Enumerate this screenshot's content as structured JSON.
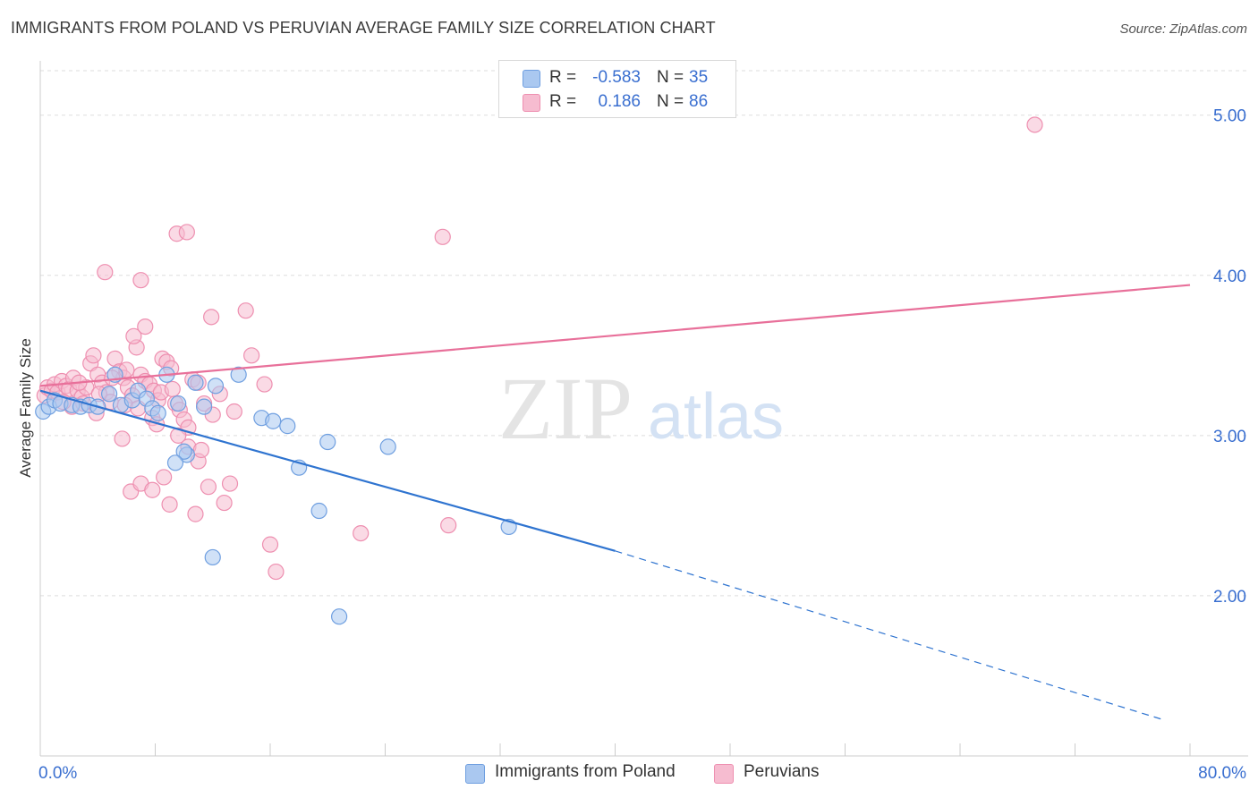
{
  "title": "IMMIGRANTS FROM POLAND VS PERUVIAN AVERAGE FAMILY SIZE CORRELATION CHART",
  "source": "Source: ZipAtlas.com",
  "watermark": {
    "zip": "ZIP",
    "atlas": "atlas"
  },
  "legend": [
    {
      "r_label": "R =",
      "r_value": "-0.583",
      "n_label": "N =",
      "n_value": "35"
    },
    {
      "r_label": "R =",
      "r_value": "0.186",
      "n_label": "N =",
      "n_value": "86"
    }
  ],
  "colors": {
    "blue_fill": "#aac8f0",
    "blue_stroke": "#6f9fe0",
    "blue_line": "#2f74d0",
    "pink_fill": "#f6bcd0",
    "pink_stroke": "#ee8fb0",
    "pink_line": "#e8709a",
    "tick_label": "#3a6fd0",
    "grid": "#dddddd"
  },
  "chart_data": {
    "type": "scatter",
    "title": "IMMIGRANTS FROM POLAND VS PERUVIAN AVERAGE FAMILY SIZE CORRELATION CHART",
    "xlabel": "",
    "ylabel": "Average Family Size",
    "xlim": [
      0,
      80
    ],
    "ylim": [
      1.0,
      5.3
    ],
    "x_tick_labels": [
      "0.0%",
      "80.0%"
    ],
    "y_ticks": [
      2.0,
      3.0,
      4.0,
      5.0
    ],
    "y_tick_labels": [
      "2.00",
      "3.00",
      "4.00",
      "5.00"
    ],
    "grid": true,
    "legend_position": "bottom",
    "series": [
      {
        "name": "Immigrants from Poland",
        "color": "#aac8f0",
        "points": [
          [
            0.2,
            3.15
          ],
          [
            0.6,
            3.18
          ],
          [
            1.0,
            3.22
          ],
          [
            1.4,
            3.2
          ],
          [
            2.2,
            3.19
          ],
          [
            2.8,
            3.18
          ],
          [
            3.4,
            3.19
          ],
          [
            4.0,
            3.18
          ],
          [
            4.8,
            3.26
          ],
          [
            5.2,
            3.38
          ],
          [
            5.6,
            3.19
          ],
          [
            6.4,
            3.22
          ],
          [
            6.8,
            3.28
          ],
          [
            7.4,
            3.23
          ],
          [
            7.8,
            3.17
          ],
          [
            8.2,
            3.14
          ],
          [
            8.8,
            3.38
          ],
          [
            9.6,
            3.2
          ],
          [
            10.2,
            2.88
          ],
          [
            10.8,
            3.33
          ],
          [
            11.4,
            3.18
          ],
          [
            12.2,
            3.31
          ],
          [
            13.8,
            3.38
          ],
          [
            15.4,
            3.11
          ],
          [
            16.2,
            3.09
          ],
          [
            17.2,
            3.06
          ],
          [
            18.0,
            2.8
          ],
          [
            19.4,
            2.53
          ],
          [
            20.0,
            2.96
          ],
          [
            24.2,
            2.93
          ],
          [
            10.0,
            2.9
          ],
          [
            9.4,
            2.83
          ],
          [
            12.0,
            2.24
          ],
          [
            20.8,
            1.87
          ],
          [
            32.6,
            2.43
          ]
        ],
        "trend": {
          "x0": 0,
          "y0": 3.28,
          "x1": 40,
          "y1": 2.28,
          "dashed_to": [
            78,
            1.23
          ]
        }
      },
      {
        "name": "Peruvians",
        "color": "#f6bcd0",
        "points": [
          [
            0.3,
            3.25
          ],
          [
            0.5,
            3.3
          ],
          [
            0.8,
            3.28
          ],
          [
            1.0,
            3.32
          ],
          [
            1.2,
            3.27
          ],
          [
            1.5,
            3.34
          ],
          [
            1.8,
            3.31
          ],
          [
            2.0,
            3.29
          ],
          [
            2.3,
            3.36
          ],
          [
            2.6,
            3.28
          ],
          [
            2.9,
            3.24
          ],
          [
            3.2,
            3.3
          ],
          [
            3.5,
            3.45
          ],
          [
            3.7,
            3.5
          ],
          [
            4.0,
            3.38
          ],
          [
            4.3,
            3.33
          ],
          [
            4.6,
            3.27
          ],
          [
            4.9,
            3.21
          ],
          [
            5.2,
            3.48
          ],
          [
            5.5,
            3.4
          ],
          [
            5.8,
            3.36
          ],
          [
            6.1,
            3.3
          ],
          [
            6.4,
            3.25
          ],
          [
            6.7,
            3.55
          ],
          [
            7.0,
            3.38
          ],
          [
            7.3,
            3.34
          ],
          [
            7.6,
            3.32
          ],
          [
            7.9,
            3.28
          ],
          [
            8.2,
            3.22
          ],
          [
            8.5,
            3.48
          ],
          [
            8.8,
            3.46
          ],
          [
            9.1,
            3.42
          ],
          [
            9.4,
            3.2
          ],
          [
            9.7,
            3.16
          ],
          [
            10.0,
            3.1
          ],
          [
            10.3,
            3.05
          ],
          [
            10.6,
            3.35
          ],
          [
            11.0,
            3.33
          ],
          [
            11.4,
            3.2
          ],
          [
            12.0,
            3.13
          ],
          [
            4.5,
            4.02
          ],
          [
            7.0,
            3.97
          ],
          [
            9.5,
            4.26
          ],
          [
            10.2,
            4.27
          ],
          [
            7.3,
            3.68
          ],
          [
            11.9,
            3.74
          ],
          [
            14.3,
            3.78
          ],
          [
            6.5,
            3.62
          ],
          [
            14.7,
            3.5
          ],
          [
            15.6,
            3.32
          ],
          [
            28.0,
            4.24
          ],
          [
            69.2,
            4.94
          ],
          [
            5.7,
            2.98
          ],
          [
            6.3,
            2.65
          ],
          [
            7.0,
            2.7
          ],
          [
            7.8,
            2.66
          ],
          [
            8.6,
            2.74
          ],
          [
            9.0,
            2.57
          ],
          [
            9.6,
            3.0
          ],
          [
            10.3,
            2.93
          ],
          [
            11.0,
            2.84
          ],
          [
            11.2,
            2.91
          ],
          [
            11.7,
            2.68
          ],
          [
            13.2,
            2.7
          ],
          [
            12.8,
            2.58
          ],
          [
            10.8,
            2.51
          ],
          [
            16.0,
            2.32
          ],
          [
            16.4,
            2.15
          ],
          [
            22.3,
            2.39
          ],
          [
            28.4,
            2.44
          ],
          [
            2.2,
            3.18
          ],
          [
            3.0,
            3.2
          ],
          [
            3.9,
            3.14
          ],
          [
            5.9,
            3.19
          ],
          [
            6.8,
            3.17
          ],
          [
            7.8,
            3.11
          ],
          [
            8.1,
            3.07
          ],
          [
            1.6,
            3.21
          ],
          [
            2.7,
            3.33
          ],
          [
            4.1,
            3.26
          ],
          [
            5.0,
            3.36
          ],
          [
            6.0,
            3.41
          ],
          [
            8.4,
            3.27
          ],
          [
            9.2,
            3.29
          ],
          [
            12.5,
            3.26
          ],
          [
            13.5,
            3.15
          ]
        ],
        "trend": {
          "x0": 0,
          "y0": 3.31,
          "x1": 80,
          "y1": 3.94
        }
      }
    ]
  },
  "bottom_legend": [
    {
      "label": "Immigrants from Poland"
    },
    {
      "label": "Peruvians"
    }
  ]
}
